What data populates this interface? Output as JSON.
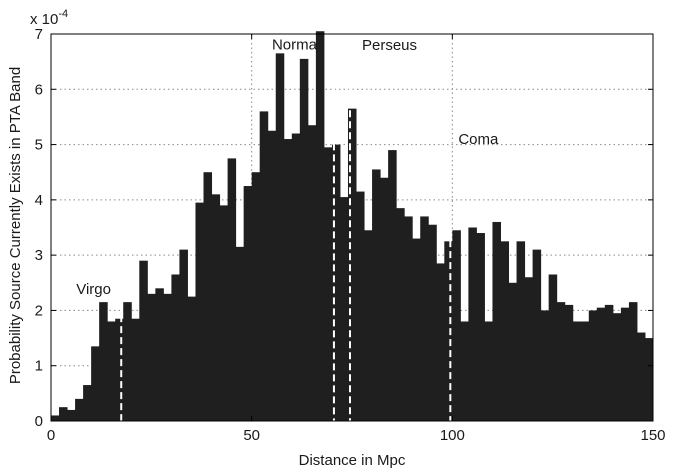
{
  "chart_data": {
    "type": "bar",
    "title": "",
    "xlabel": "Distance in Mpc",
    "ylabel": "Probability Source Currently Exists in PTA Band",
    "y_scale_label": "x 10",
    "y_scale_exponent": "-4",
    "xlim": [
      0,
      150
    ],
    "ylim": [
      0,
      7
    ],
    "grid": true,
    "x_ticks": [
      "0",
      "50",
      "100",
      "150"
    ],
    "y_ticks": [
      "0",
      "1",
      "2",
      "3",
      "4",
      "5",
      "6",
      "7"
    ],
    "bin_width": 2,
    "x": [
      1,
      3,
      5,
      7,
      9,
      11,
      13,
      15,
      17,
      19,
      21,
      23,
      25,
      27,
      29,
      31,
      33,
      35,
      37,
      39,
      41,
      43,
      45,
      47,
      49,
      51,
      53,
      55,
      57,
      59,
      61,
      63,
      65,
      67,
      69,
      71,
      73,
      75,
      77,
      79,
      81,
      83,
      85,
      87,
      89,
      91,
      93,
      95,
      97,
      99,
      101,
      103,
      105,
      107,
      109,
      111,
      113,
      115,
      117,
      119,
      121,
      123,
      125,
      127,
      129,
      131,
      133,
      135,
      137,
      139,
      141,
      143,
      145,
      147,
      149
    ],
    "values": [
      0.1,
      0.25,
      0.2,
      0.4,
      0.65,
      1.35,
      2.15,
      1.8,
      1.85,
      2.15,
      1.85,
      2.9,
      2.3,
      2.4,
      2.3,
      2.65,
      3.1,
      2.25,
      3.95,
      4.5,
      4.1,
      3.9,
      4.75,
      3.15,
      4.25,
      4.5,
      5.6,
      5.25,
      6.65,
      5.1,
      5.2,
      6.55,
      5.35,
      7.05,
      4.95,
      5.0,
      4.05,
      5.65,
      4.15,
      3.45,
      4.55,
      4.4,
      4.9,
      3.85,
      3.7,
      3.3,
      3.7,
      3.55,
      2.85,
      3.25,
      3.45,
      1.8,
      3.5,
      3.4,
      1.8,
      3.6,
      3.25,
      2.5,
      3.25,
      2.6,
      3.1,
      2.0,
      2.65,
      2.15,
      2.1,
      1.8,
      1.8,
      2.0,
      2.05,
      2.1,
      1.95,
      2.05,
      2.15,
      1.6,
      1.5
    ],
    "reference_lines": [
      {
        "name": "Virgo",
        "x": 17.5,
        "height": 2.15
      },
      {
        "name": "Norma",
        "x": 70.5,
        "height": 6.65
      },
      {
        "name": "Perseus",
        "x": 74.5,
        "height": 7.05
      },
      {
        "name": "Coma",
        "x": 99.5,
        "height": 4.9
      }
    ]
  }
}
